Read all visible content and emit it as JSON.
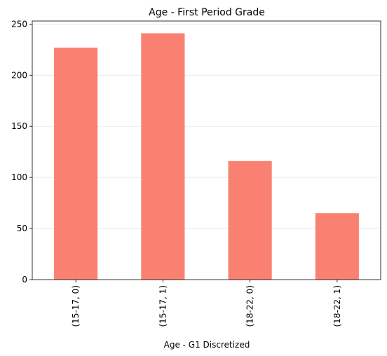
{
  "chart_data": {
    "type": "bar",
    "title": "Age - First Period Grade",
    "xlabel": "Age - G1 Discretized",
    "ylabel": "",
    "categories": [
      "(15-17, 0)",
      "(15-17, 1)",
      "(18-22, 0)",
      "(18-22, 1)"
    ],
    "values": [
      227,
      241,
      116,
      65
    ],
    "ylim": [
      0,
      253
    ],
    "yticks": [
      0,
      50,
      100,
      150,
      200,
      250
    ],
    "grid": "y",
    "bar_color": "#fa8072",
    "legend": "none"
  }
}
